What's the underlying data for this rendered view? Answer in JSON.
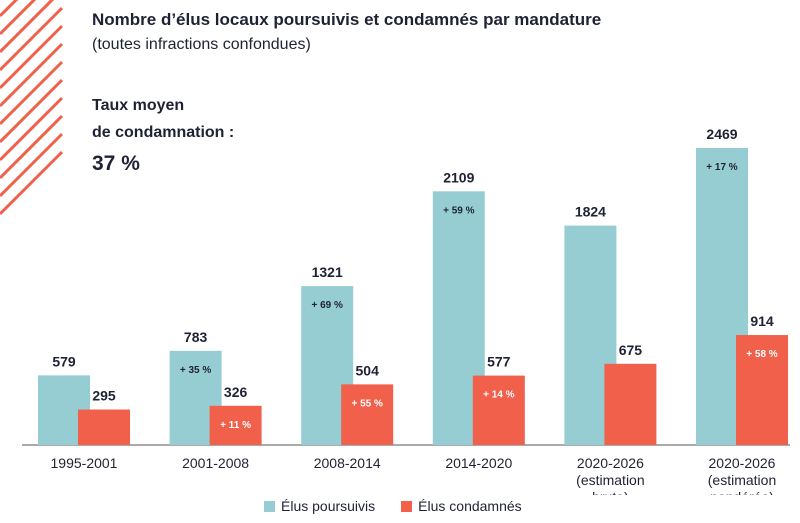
{
  "title": "Nombre d’élus locaux poursuivis et condamnés par mandature",
  "subtitle": "(toutes infractions confondues)",
  "average": {
    "label_line1": "Taux moyen",
    "label_line2": "de condamnation :",
    "value": "37 %"
  },
  "colors": {
    "poursuivis": "#96cdd3",
    "condamnes": "#f0604a",
    "text": "#1f2233",
    "hatch": "#f0604a"
  },
  "legend": {
    "poursuivis": "Élus poursuivis",
    "condamnes": "Élus condamnés"
  },
  "chart_data": {
    "type": "bar",
    "categories": [
      [
        "1995-2001"
      ],
      [
        "2001-2008"
      ],
      [
        "2008-2014"
      ],
      [
        "2014-2020"
      ],
      [
        "2020-2026",
        "(estimation",
        "brute)"
      ],
      [
        "2020-2026",
        "(estimation",
        "pondérée)"
      ]
    ],
    "series": [
      {
        "name": "Élus poursuivis",
        "values": [
          579,
          783,
          1321,
          2109,
          1824,
          2469
        ],
        "change_labels": [
          "",
          "+ 35 %",
          "+ 69 %",
          "+ 59 %",
          "",
          "+ 17 %"
        ]
      },
      {
        "name": "Élus condamnés",
        "values": [
          295,
          326,
          504,
          577,
          675,
          914
        ],
        "change_labels": [
          "",
          "+ 11 %",
          "+ 55 %",
          "+ 14 %",
          "",
          "+ 58 %"
        ]
      }
    ],
    "ylim": [
      0,
      2469
    ],
    "grid": false,
    "legend_position": "bottom"
  }
}
